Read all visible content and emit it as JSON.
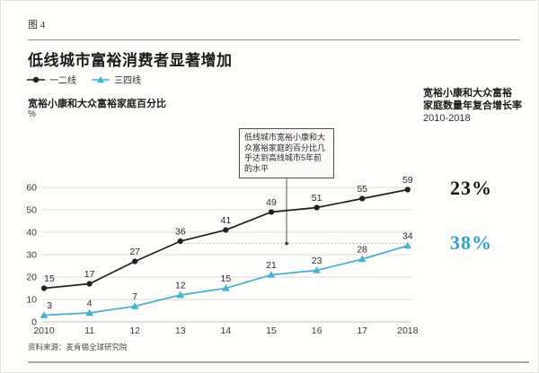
{
  "page": {
    "figure_label": "图 4",
    "title": "低线城市富裕消费者显著增加",
    "source": "资料来源：麦肯锡全球研究院"
  },
  "legend": [
    {
      "label": "一二线",
      "color": "#212120",
      "marker": "circle"
    },
    {
      "label": "三四线",
      "color": "#49b0d0",
      "marker": "triangle"
    }
  ],
  "y_axis": {
    "title": "宽裕小康和大众富裕家庭百分比",
    "unit": "%"
  },
  "right_header": {
    "line1": "宽裕小康和大众富裕",
    "line2": "家庭数量年复合增长率",
    "line3": "2010-2018"
  },
  "annotation": {
    "lines": [
      "低线城市宽裕小康和大",
      "众富裕家庭的百分比几",
      "乎达到高线城市5年前",
      "的水平"
    ]
  },
  "cagr": [
    {
      "value": "23%",
      "color": "#151413"
    },
    {
      "value": "38%",
      "color": "#2ba2cf"
    }
  ],
  "chart_data": {
    "type": "line",
    "title": "低线城市富裕消费者显著增加",
    "ylabel": "宽裕小康和大众富裕家庭百分比 %",
    "x": [
      "2010",
      "11",
      "12",
      "13",
      "14",
      "15",
      "16",
      "17",
      "2018"
    ],
    "series": [
      {
        "name": "一二线",
        "color": "#212120",
        "marker": "circle",
        "values": [
          15,
          17,
          27,
          36,
          41,
          49,
          51,
          55,
          59
        ]
      },
      {
        "name": "三四线",
        "color": "#49b0d0",
        "marker": "triangle",
        "values": [
          3,
          4,
          7,
          12,
          15,
          21,
          23,
          28,
          34
        ]
      }
    ],
    "yticks": [
      0,
      10,
      20,
      30,
      40,
      50,
      60
    ],
    "ylim": [
      0,
      60
    ],
    "grid": true,
    "legend_position": "top-left",
    "reference_line": {
      "value": 35,
      "from_x_index": 3,
      "style": "dotted"
    },
    "cagr_2010_2018": {
      "一二线": "23%",
      "三四线": "38%"
    }
  }
}
